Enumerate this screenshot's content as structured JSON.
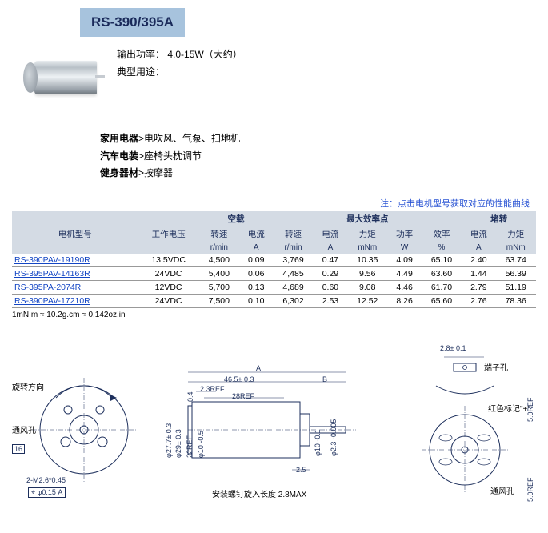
{
  "title": "RS-390/395A",
  "output_power": {
    "label": "输出功率：",
    "value": "4.0-15W（大约）"
  },
  "typical_uses_label": "典型用途：",
  "uses": [
    {
      "category": "家用电器",
      "items": ">电吹风、气泵、扫地机"
    },
    {
      "category": "汽车电装",
      "items": ">座椅头枕调节"
    },
    {
      "category": "健身器材",
      "items": ">按摩器"
    }
  ],
  "table_note": "注：点击电机型号获取对应的性能曲线",
  "table": {
    "group_headers": {
      "blank1": "",
      "blank2": "",
      "noload": "空载",
      "maxeff": "最大效率点",
      "stall": "堵转"
    },
    "subheaders": {
      "model": "电机型号",
      "voltage": "工作电压",
      "nl_speed": "转速",
      "nl_current": "电流",
      "me_speed": "转速",
      "me_current": "电流",
      "me_torque": "力矩",
      "me_power": "功率",
      "me_eff": "效率",
      "st_current": "电流",
      "st_torque": "力矩"
    },
    "units": {
      "model": "",
      "voltage": "",
      "nl_speed": "r/min",
      "nl_current": "A",
      "me_speed": "r/min",
      "me_current": "A",
      "me_torque": "mNm",
      "me_power": "W",
      "me_eff": "%",
      "st_current": "A",
      "st_torque": "mNm"
    },
    "rows": [
      {
        "model": "RS-390PAV-19190R",
        "voltage": "13.5VDC",
        "nl_speed": "4,500",
        "nl_current": "0.09",
        "me_speed": "3,769",
        "me_current": "0.47",
        "me_torque": "10.35",
        "me_power": "4.09",
        "me_eff": "65.10",
        "st_current": "2.40",
        "st_torque": "63.74"
      },
      {
        "model": "RS-395PAV-14163R",
        "voltage": "24VDC",
        "nl_speed": "5,400",
        "nl_current": "0.06",
        "me_speed": "4,485",
        "me_current": "0.29",
        "me_torque": "9.56",
        "me_power": "4.49",
        "me_eff": "63.60",
        "st_current": "1.44",
        "st_torque": "56.39"
      },
      {
        "model": "RS-395PA-2074R",
        "voltage": "12VDC",
        "nl_speed": "5,700",
        "nl_current": "0.13",
        "me_speed": "4,689",
        "me_current": "0.60",
        "me_torque": "9.08",
        "me_power": "4.46",
        "me_eff": "61.70",
        "st_current": "2.79",
        "st_torque": "51.19"
      },
      {
        "model": "RS-390PAV-17210R",
        "voltage": "24VDC",
        "nl_speed": "7,500",
        "nl_current": "0.10",
        "me_speed": "6,302",
        "me_current": "2.53",
        "me_torque": "12.52",
        "me_power": "8.26",
        "me_eff": "65.60",
        "st_current": "2.76",
        "st_torque": "78.36"
      }
    ]
  },
  "conversion_note": "1mN.m ≈ 10.2g.cm ≈ 0.142oz.in",
  "diagram": {
    "front_view": {
      "rotation_label": "旋转方向",
      "vent_label": "通风孔",
      "screw_label": "2-M2.6*0.45",
      "gd_label": "⌖ φ0.15 A",
      "overall_h": "16"
    },
    "side_view": {
      "dim_A": "A",
      "dim_465": "46.5± 0.3",
      "dim_B": "B",
      "dim_23ref": "2.3REF",
      "dim_28ref": "28REF",
      "dim_04": "0.4",
      "dim_277": "φ27.7± 0.3",
      "dim_297": "φ29± 0.3",
      "dim_22ref": "22REF",
      "dim_105": "φ10 -0.5",
      "dim_101": "φ10 -0.1",
      "dim_23": "φ2.3 -0.005",
      "dim_25": "2.5",
      "install_label": "安装螺钉旋入长度 2.8MAX"
    },
    "terminal_view": {
      "dim_28": "2.8± 0.1",
      "terminal_label": "端子孔",
      "red_label": "红色标记\"+\"",
      "vent_label": "通风孔",
      "dim_5ref_top": "5.0REF",
      "dim_5ref_bot": "5.0REF"
    }
  }
}
